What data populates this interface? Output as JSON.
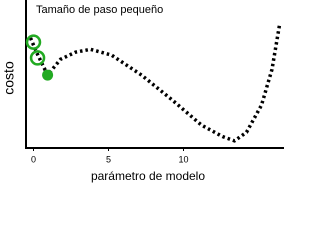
{
  "chart_data": {
    "type": "line",
    "title": "Tamaño de paso pequeño",
    "xlabel": "parámetro de modelo",
    "ylabel": "costo",
    "xlim": [
      -0.5,
      16.7
    ],
    "xticks": [
      0,
      5,
      10
    ],
    "ylim": [
      0,
      10
    ],
    "series": [
      {
        "color": "#000000",
        "line_style": "dotted",
        "x": [
          -0.2,
          0.2,
          0.94,
          1.8,
          2.8,
          3.8,
          5.2,
          7.2,
          9.2,
          11.2,
          12.6,
          13.4,
          14.2,
          15.2,
          15.9,
          16.4
        ],
        "values": [
          7.7,
          6.7,
          5.1,
          6.2,
          6.7,
          6.9,
          6.5,
          5.1,
          3.4,
          1.6,
          0.8,
          0.5,
          1.1,
          3.0,
          5.5,
          8.6
        ]
      }
    ],
    "markers": {
      "color": "#22aa22",
      "x": [
        0,
        0.27,
        0.94
      ],
      "values": [
        7.4,
        6.3,
        5.1
      ],
      "filled": [
        false,
        false,
        true
      ]
    }
  }
}
